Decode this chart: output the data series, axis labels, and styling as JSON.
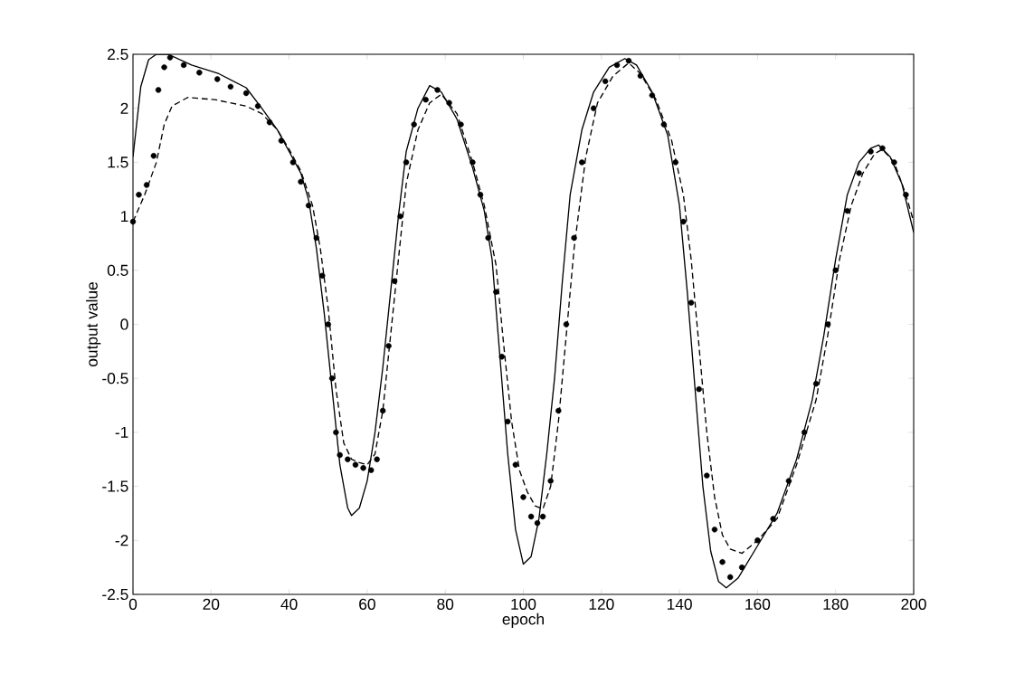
{
  "chart_data": {
    "type": "line",
    "xlabel": "epoch",
    "ylabel": "output value",
    "xlim": [
      0,
      200
    ],
    "ylim": [
      -2.5,
      2.5
    ],
    "xticks": [
      0,
      20,
      40,
      60,
      80,
      100,
      120,
      140,
      160,
      180,
      200
    ],
    "yticks": [
      -2.5,
      -2,
      -1.5,
      -1,
      -0.5,
      0,
      0.5,
      1,
      1.5,
      2,
      2.5
    ],
    "grid": false,
    "series": [
      {
        "line_style": "solid",
        "color": "#000000",
        "x": [
          0,
          2,
          4,
          6,
          9,
          15,
          22,
          29,
          33,
          37,
          40,
          43,
          45,
          47,
          49,
          51,
          53,
          55,
          56,
          58,
          60,
          62,
          64,
          66,
          68,
          70,
          73,
          76,
          79,
          83,
          87,
          90,
          92,
          94,
          96,
          98,
          100,
          102,
          104,
          106,
          108,
          110,
          112,
          115,
          118,
          122,
          126,
          129,
          133,
          137,
          140,
          142,
          144,
          146,
          148,
          150,
          152,
          155,
          160,
          165,
          170,
          174,
          177,
          180,
          183,
          186,
          189,
          191,
          194,
          197,
          200
        ],
        "values": [
          1.55,
          2.2,
          2.45,
          2.5,
          2.5,
          2.4,
          2.32,
          2.19,
          2.0,
          1.8,
          1.6,
          1.4,
          1.15,
          0.7,
          0.1,
          -0.6,
          -1.3,
          -1.7,
          -1.77,
          -1.7,
          -1.45,
          -1.0,
          -0.4,
          0.3,
          1.0,
          1.6,
          2.0,
          2.21,
          2.15,
          1.9,
          1.45,
          1.05,
          0.6,
          -0.3,
          -1.2,
          -1.9,
          -2.22,
          -2.15,
          -1.8,
          -1.2,
          -0.5,
          0.4,
          1.2,
          1.8,
          2.15,
          2.38,
          2.46,
          2.4,
          2.15,
          1.75,
          1.1,
          0.3,
          -0.6,
          -1.5,
          -2.1,
          -2.38,
          -2.44,
          -2.35,
          -2.05,
          -1.75,
          -1.25,
          -0.7,
          -0.1,
          0.6,
          1.2,
          1.5,
          1.63,
          1.66,
          1.55,
          1.3,
          0.85
        ]
      },
      {
        "line_style": "dashed",
        "color": "#000000",
        "x": [
          0,
          3,
          6,
          8,
          10,
          14,
          21,
          29,
          33,
          37,
          40,
          43,
          46,
          48,
          50,
          52,
          54,
          56,
          58,
          60,
          62,
          64,
          66,
          68,
          70,
          73,
          76,
          79,
          83,
          87,
          90,
          93,
          95,
          97,
          99,
          101,
          103,
          105,
          107,
          109,
          111,
          113,
          116,
          119,
          123,
          127,
          130,
          134,
          138,
          141,
          143,
          145,
          147,
          149,
          151,
          153,
          156,
          160,
          165,
          170,
          175,
          178,
          181,
          184,
          187,
          190,
          192,
          195,
          198,
          200
        ],
        "values": [
          0.95,
          1.2,
          1.5,
          1.85,
          2.02,
          2.1,
          2.08,
          2.02,
          1.95,
          1.8,
          1.62,
          1.42,
          1.1,
          0.7,
          0.15,
          -0.6,
          -1.1,
          -1.25,
          -1.28,
          -1.3,
          -1.2,
          -0.8,
          -0.1,
          0.6,
          1.3,
          1.8,
          2.05,
          2.13,
          1.95,
          1.5,
          1.1,
          0.55,
          -0.2,
          -0.9,
          -1.35,
          -1.55,
          -1.68,
          -1.71,
          -1.5,
          -0.9,
          -0.1,
          0.7,
          1.55,
          2.05,
          2.3,
          2.42,
          2.32,
          2.08,
          1.7,
          1.2,
          0.6,
          -0.2,
          -1.0,
          -1.6,
          -1.95,
          -2.08,
          -2.12,
          -2.0,
          -1.8,
          -1.3,
          -0.7,
          -0.1,
          0.6,
          1.1,
          1.4,
          1.58,
          1.62,
          1.5,
          1.2,
          0.95
        ]
      },
      {
        "type": "scatter",
        "marker": "circle",
        "color": "#000000",
        "x": [
          0,
          1.5,
          3.5,
          5.3,
          6.5,
          8,
          9.5,
          13,
          17,
          21.6,
          25,
          29,
          32,
          35,
          38,
          41,
          43,
          45,
          47,
          48.5,
          50,
          51,
          52,
          53,
          55,
          57,
          59,
          61,
          62.5,
          64,
          65.5,
          67,
          68.5,
          70,
          72,
          75,
          78,
          81,
          84,
          87,
          89,
          91,
          93,
          94.5,
          96,
          98,
          100,
          102,
          103.6,
          105,
          107,
          109,
          111,
          113,
          115,
          118,
          121,
          124,
          127,
          130,
          133,
          136,
          139,
          141,
          143,
          145,
          147,
          149,
          151,
          153,
          156,
          160,
          164,
          168,
          172,
          175,
          178,
          180,
          183,
          186,
          189,
          192,
          195,
          198
        ],
        "values": [
          0.95,
          1.2,
          1.29,
          1.56,
          2.17,
          2.38,
          2.47,
          2.4,
          2.33,
          2.27,
          2.2,
          2.14,
          2.02,
          1.87,
          1.7,
          1.5,
          1.32,
          1.1,
          0.8,
          0.45,
          0.0,
          -0.5,
          -1.0,
          -1.21,
          -1.25,
          -1.3,
          -1.33,
          -1.35,
          -1.25,
          -0.8,
          -0.2,
          0.4,
          1.0,
          1.5,
          1.85,
          2.08,
          2.17,
          2.05,
          1.85,
          1.5,
          1.2,
          0.8,
          0.3,
          -0.3,
          -0.9,
          -1.3,
          -1.6,
          -1.78,
          -1.84,
          -1.78,
          -1.45,
          -0.8,
          0.0,
          0.8,
          1.5,
          2.0,
          2.25,
          2.4,
          2.44,
          2.3,
          2.12,
          1.85,
          1.5,
          0.95,
          0.2,
          -0.6,
          -1.4,
          -1.9,
          -2.2,
          -2.34,
          -2.25,
          -2.0,
          -1.8,
          -1.45,
          -1.0,
          -0.55,
          0.0,
          0.5,
          1.05,
          1.4,
          1.6,
          1.63,
          1.5,
          1.2
        ]
      }
    ]
  }
}
